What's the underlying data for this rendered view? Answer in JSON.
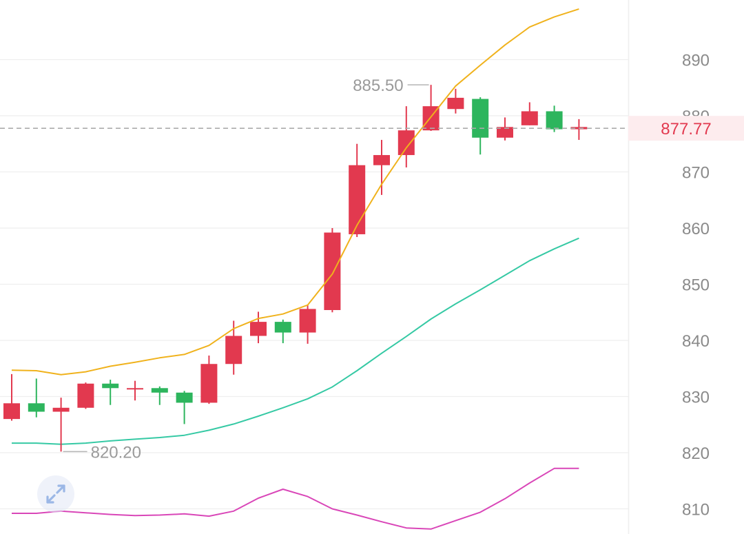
{
  "chart_data": {
    "type": "candlestick",
    "ylim": [
      805,
      898
    ],
    "yticks": [
      810,
      820,
      830,
      840,
      850,
      860,
      870,
      880,
      890
    ],
    "grid": true,
    "colors": {
      "up": "#e2394f",
      "down": "#2db55d",
      "ma_fast": "#f0b21c",
      "ma_slow": "#35c9a4",
      "indicator": "#d946b8",
      "grid": "#eeeeee",
      "current_price": "#e2394f"
    },
    "candles": [
      {
        "o": 826.0,
        "c": 828.8,
        "h": 834.0,
        "l": 825.7
      },
      {
        "o": 828.8,
        "c": 827.3,
        "h": 833.2,
        "l": 826.3
      },
      {
        "o": 827.3,
        "c": 828.0,
        "h": 829.8,
        "l": 820.2
      },
      {
        "o": 828.0,
        "c": 832.3,
        "h": 832.5,
        "l": 827.8
      },
      {
        "o": 832.3,
        "c": 831.5,
        "h": 833.0,
        "l": 828.5
      },
      {
        "o": 831.5,
        "c": 831.5,
        "h": 832.8,
        "l": 829.3
      },
      {
        "o": 831.5,
        "c": 830.7,
        "h": 831.8,
        "l": 828.5
      },
      {
        "o": 830.7,
        "c": 828.9,
        "h": 831.0,
        "l": 825.1
      },
      {
        "o": 828.9,
        "c": 835.8,
        "h": 837.3,
        "l": 828.7
      },
      {
        "o": 835.8,
        "c": 840.8,
        "h": 843.5,
        "l": 833.9
      },
      {
        "o": 840.8,
        "c": 843.3,
        "h": 845.1,
        "l": 839.5
      },
      {
        "o": 843.3,
        "c": 841.4,
        "h": 843.7,
        "l": 839.5
      },
      {
        "o": 841.4,
        "c": 845.6,
        "h": 846.3,
        "l": 839.4
      },
      {
        "o": 845.4,
        "c": 859.2,
        "h": 860.0,
        "l": 845.0
      },
      {
        "o": 858.9,
        "c": 871.2,
        "h": 875.0,
        "l": 858.4
      },
      {
        "o": 871.2,
        "c": 873.0,
        "h": 875.7,
        "l": 865.9
      },
      {
        "o": 873.0,
        "c": 877.4,
        "h": 881.7,
        "l": 870.8
      },
      {
        "o": 877.4,
        "c": 881.7,
        "h": 885.5,
        "l": 877.3
      },
      {
        "o": 881.2,
        "c": 883.2,
        "h": 884.8,
        "l": 880.4
      },
      {
        "o": 883.0,
        "c": 876.1,
        "h": 883.3,
        "l": 873.1
      },
      {
        "o": 876.1,
        "c": 878.0,
        "h": 879.7,
        "l": 875.6
      },
      {
        "o": 878.3,
        "c": 880.8,
        "h": 882.4,
        "l": 878.3
      },
      {
        "o": 880.8,
        "c": 877.6,
        "h": 881.8,
        "l": 877.1
      },
      {
        "o": 877.6,
        "c": 878.0,
        "h": 879.4,
        "l": 875.7
      }
    ],
    "ma_fast": [
      834.7,
      834.6,
      833.9,
      834.4,
      835.4,
      836.1,
      836.9,
      837.5,
      839.1,
      842.1,
      843.9,
      844.7,
      846.3,
      851.8,
      860.5,
      867.8,
      874.3,
      879.8,
      885.3,
      889.0,
      892.6,
      895.8,
      897.6,
      899.0
    ],
    "ma_slow": [
      821.7,
      821.7,
      821.5,
      821.7,
      822.1,
      822.4,
      822.7,
      823.1,
      824.0,
      825.1,
      826.5,
      828.0,
      829.6,
      831.7,
      834.6,
      837.7,
      840.7,
      843.8,
      846.5,
      849.0,
      851.6,
      854.2,
      856.3,
      858.2
    ],
    "indicator": [
      809.2,
      809.2,
      809.6,
      809.3,
      809.0,
      808.8,
      808.9,
      809.1,
      808.7,
      809.6,
      811.9,
      813.5,
      812.2,
      810.0,
      808.9,
      807.7,
      806.6,
      806.4,
      807.9,
      809.4,
      811.8,
      814.6,
      817.2,
      817.2
    ],
    "annotations": {
      "high": "885.50",
      "low": "820.20"
    },
    "current_price": {
      "value": 877.77,
      "label": "877.77"
    }
  },
  "controls": {
    "expand_icon": "expand-arrows-icon"
  }
}
